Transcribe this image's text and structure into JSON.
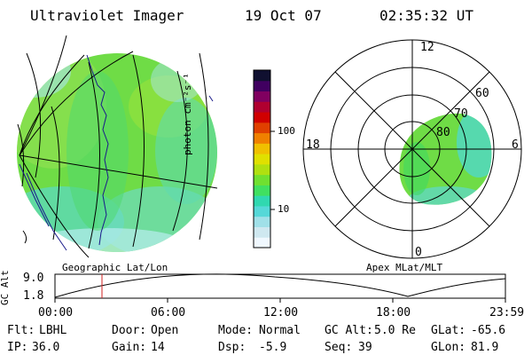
{
  "header": {
    "instrument": "Ultraviolet Imager",
    "date": "19 Oct 07",
    "time": "02:35:32 UT"
  },
  "colorbar": {
    "unit_label": "photon cm⁻²s⁻¹",
    "ticks": [
      "100",
      "10"
    ],
    "colors": [
      "#f0f8ff",
      "#cfe8f0",
      "#a0e0e8",
      "#55d8d8",
      "#30d8b0",
      "#40e060",
      "#70e030",
      "#b0e010",
      "#e0e000",
      "#f0c000",
      "#f08000",
      "#e04000",
      "#d00000",
      "#b00030",
      "#800060",
      "#400060",
      "#101030"
    ]
  },
  "left_panel": {
    "label": "Geographic Lat/Lon"
  },
  "right_panel": {
    "label": "Apex MLat/MLT",
    "mlt_labels": {
      "top": "12",
      "left": "18",
      "right": "6",
      "bottom": "0"
    },
    "lat_labels": [
      "60",
      "70",
      "80"
    ]
  },
  "altitude_plot": {
    "ylabel": "GC Alt",
    "yticks": [
      "9.0",
      "1.8"
    ],
    "xticks": [
      "00:00",
      "06:00",
      "12:00",
      "18:00",
      "23:59"
    ]
  },
  "info": [
    {
      "label": "Flt:",
      "value": "LBHL"
    },
    {
      "label": "Door:",
      "value": "Open"
    },
    {
      "label": "Mode:",
      "value": "Normal"
    },
    {
      "label": "GC Alt:",
      "value": "5.0 Re"
    },
    {
      "label": "GLat:",
      "value": "-65.6"
    },
    {
      "label": "IP:",
      "value": "36.0"
    },
    {
      "label": "Gain:",
      "value": "14"
    },
    {
      "label": "Dsp:",
      "value": "-5.9"
    },
    {
      "label": "Seq:",
      "value": "39"
    },
    {
      "label": "GLon:",
      "value": "81.9"
    }
  ]
}
